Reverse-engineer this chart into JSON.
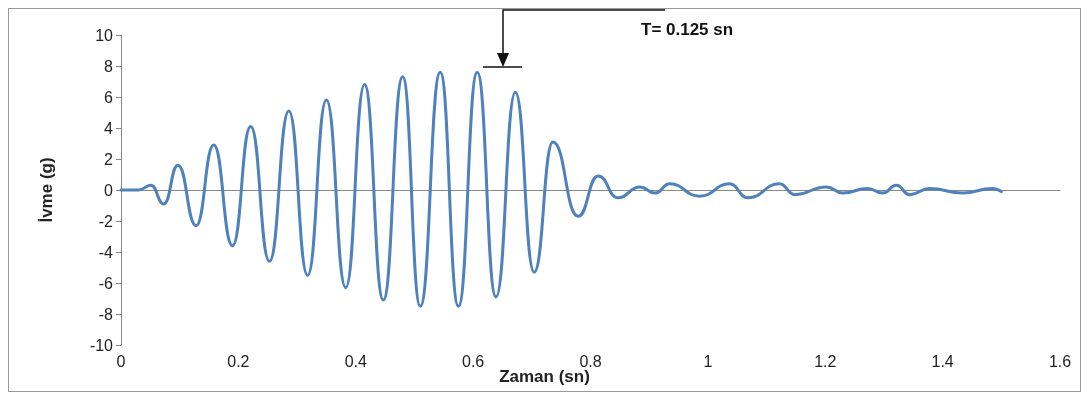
{
  "chart_data": {
    "type": "line",
    "xlabel": "Zaman (sn)",
    "ylabel": "İvme (g)",
    "x": [
      0,
      0.03,
      0.051,
      0.073,
      0.097,
      0.128,
      0.158,
      0.19,
      0.221,
      0.253,
      0.286,
      0.318,
      0.35,
      0.383,
      0.415,
      0.447,
      0.48,
      0.51,
      0.544,
      0.575,
      0.607,
      0.639,
      0.672,
      0.704,
      0.736,
      0.779,
      0.813,
      0.847,
      0.884,
      0.91,
      0.935,
      0.986,
      1.037,
      1.068,
      1.122,
      1.148,
      1.202,
      1.23,
      1.272,
      1.298,
      1.321,
      1.344,
      1.378,
      1.434,
      1.485,
      1.5
    ],
    "series": [
      {
        "color": "#4f81bd",
        "values": [
          0,
          0,
          0.3,
          -0.9,
          1.6,
          -2.3,
          2.9,
          -3.6,
          4.1,
          -4.6,
          5.1,
          -5.5,
          5.8,
          -6.3,
          6.8,
          -7.1,
          7.3,
          -7.5,
          7.6,
          -7.5,
          7.6,
          -6.9,
          6.3,
          -5.3,
          3.1,
          -1.7,
          0.9,
          -0.5,
          0.2,
          -0.2,
          0.4,
          -0.4,
          0.4,
          -0.5,
          0.4,
          -0.3,
          0.2,
          -0.2,
          0.1,
          -0.2,
          0.3,
          -0.3,
          0.1,
          -0.2,
          0.1,
          -0.1
        ]
      }
    ],
    "xlim": [
      0,
      1.6
    ],
    "xticks": [
      0,
      0.2,
      0.4,
      0.6,
      0.8,
      1,
      1.2,
      1.4,
      1.6
    ],
    "ylim": [
      -10,
      10
    ],
    "yticks": [
      -10,
      -8,
      -6,
      -4,
      -2,
      0,
      2,
      4,
      6,
      8,
      10
    ],
    "marker": "none",
    "line_style": "solid",
    "annotations": [
      "T= 0.125 sn"
    ]
  }
}
